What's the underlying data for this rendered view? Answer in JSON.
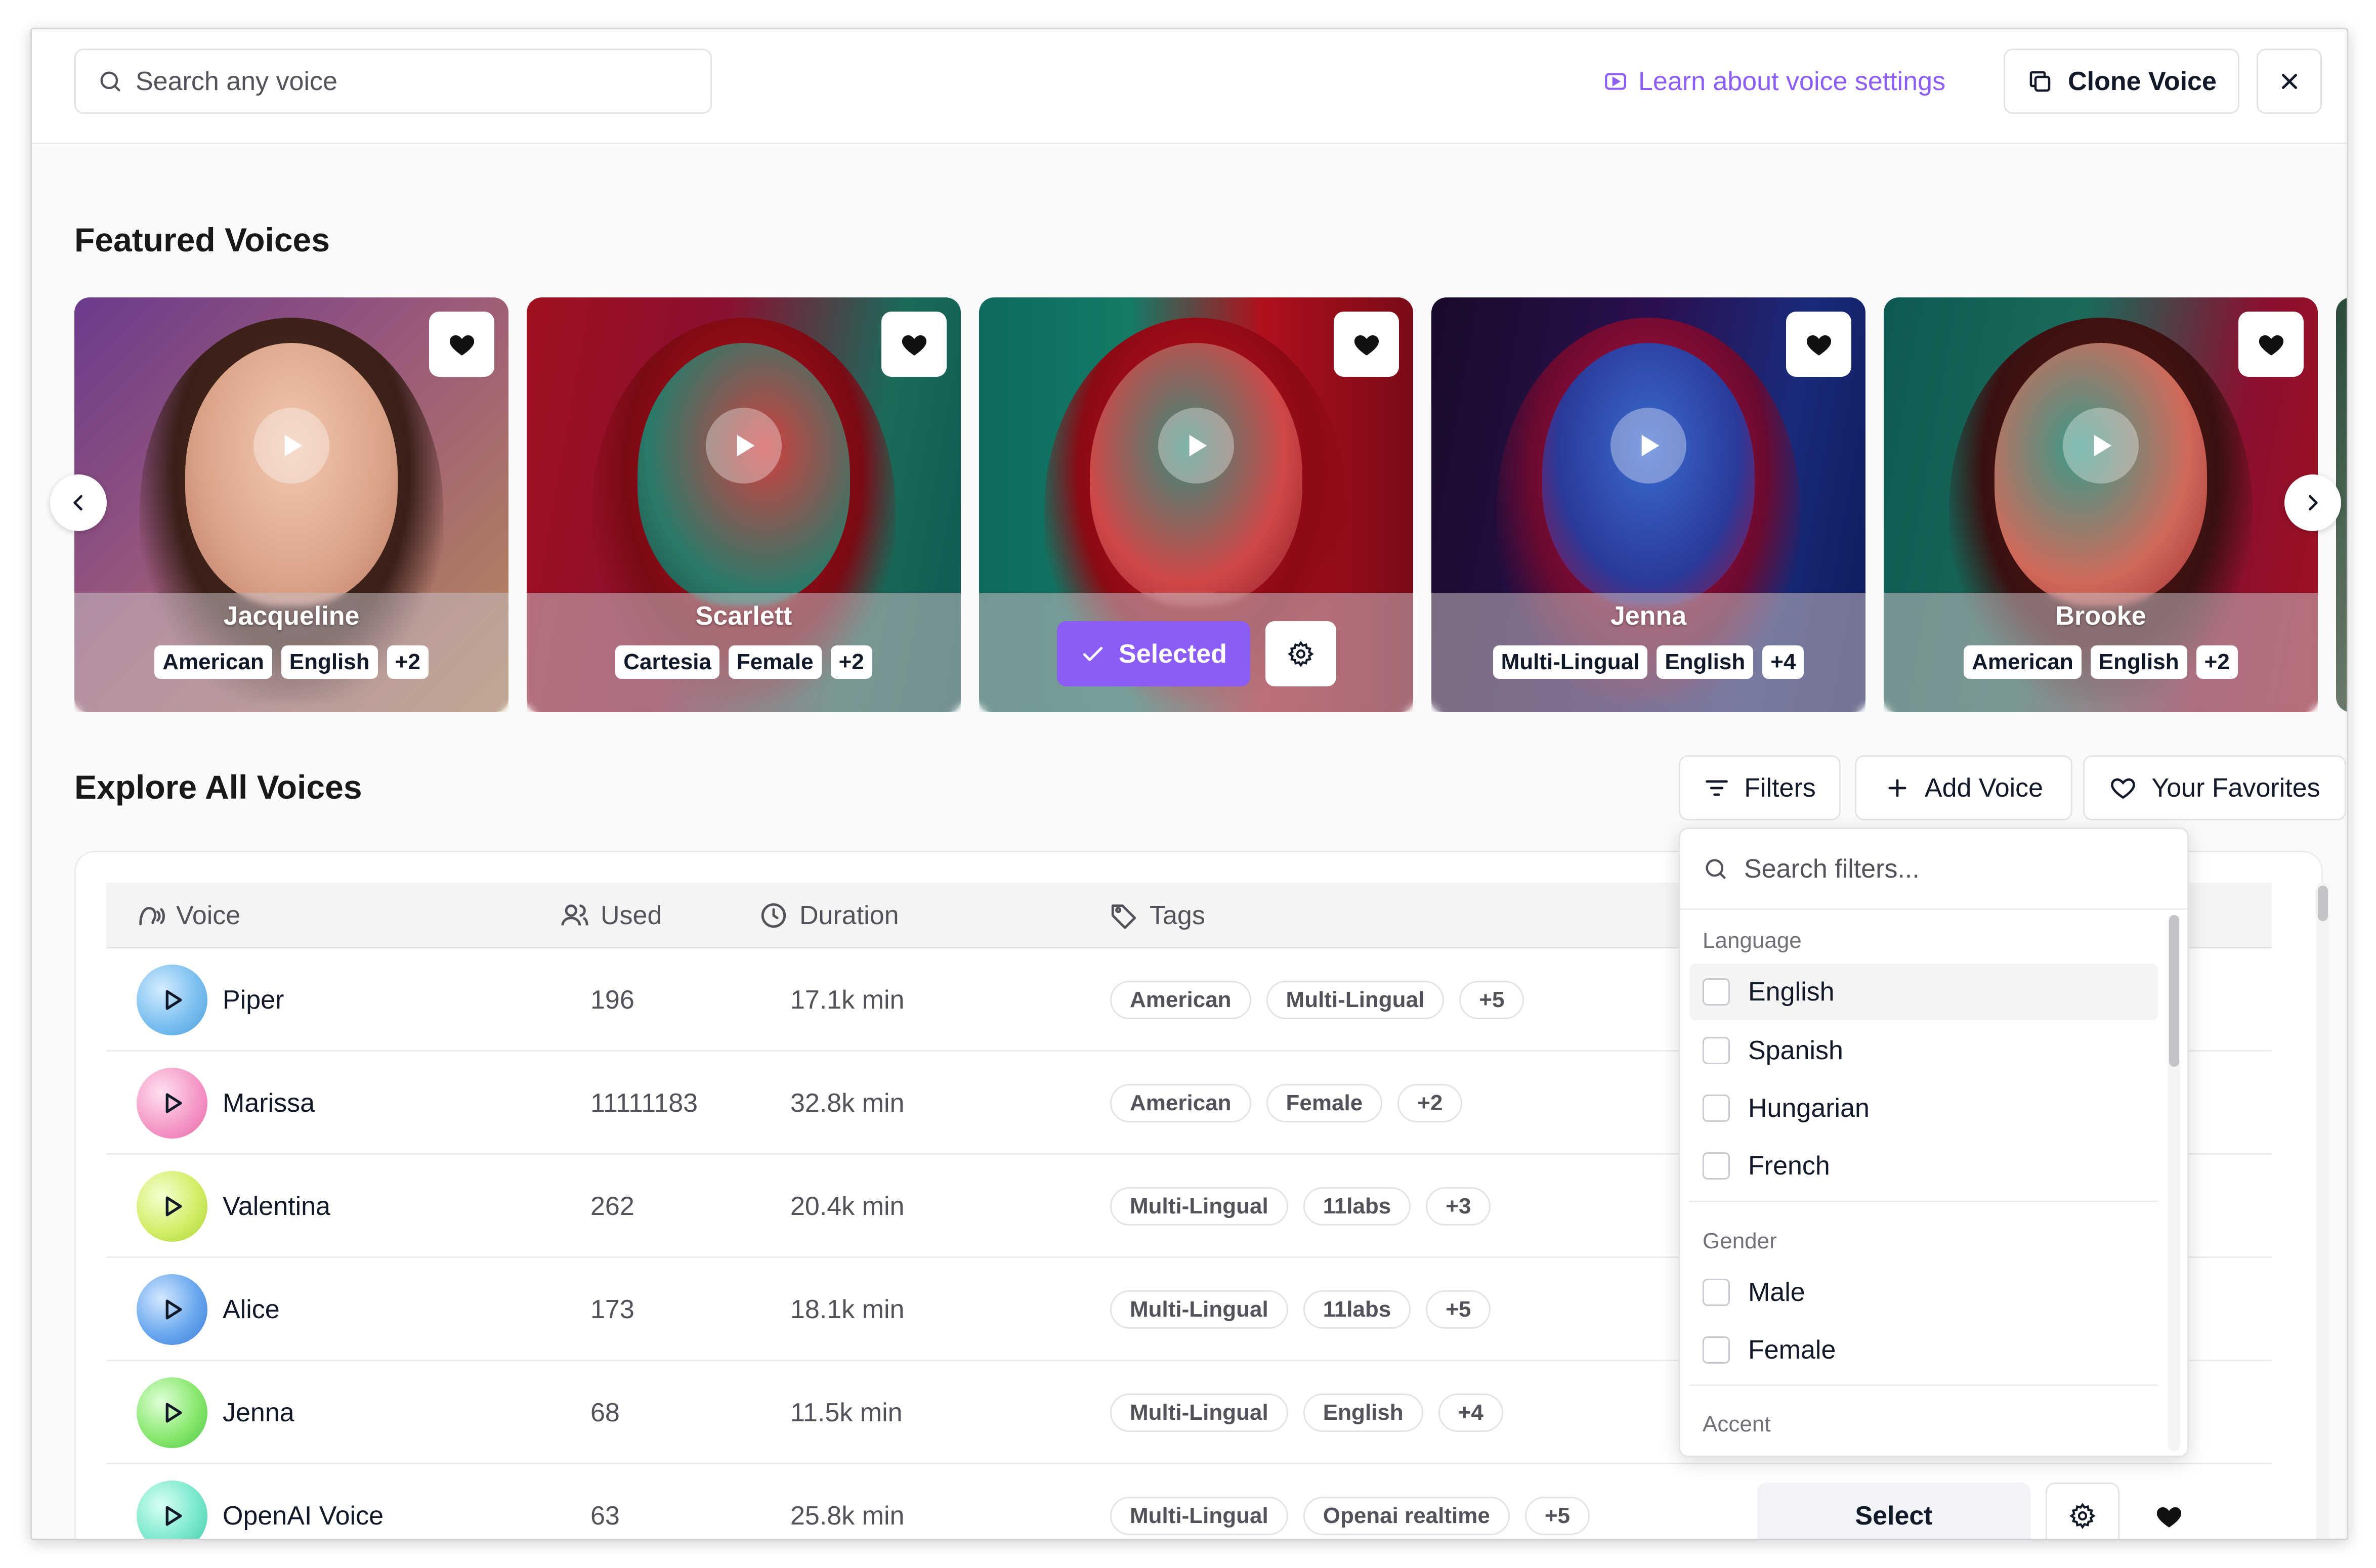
{
  "header": {
    "search_placeholder": "Search any voice",
    "learn_link": "Learn about voice settings",
    "clone_button": "Clone Voice"
  },
  "featured": {
    "title": "Featured Voices",
    "cards": [
      {
        "name": "Jacqueline",
        "tags": [
          "American",
          "English",
          "+2"
        ]
      },
      {
        "name": "Scarlett",
        "tags": [
          "Cartesia",
          "Female",
          "+2"
        ]
      },
      {
        "name": "",
        "tags": [],
        "selected_label": "Selected"
      },
      {
        "name": "Jenna",
        "tags": [
          "Multi-Lingual",
          "English",
          "+4"
        ]
      },
      {
        "name": "Brooke",
        "tags": [
          "American",
          "English",
          "+2"
        ]
      }
    ]
  },
  "explore": {
    "title": "Explore All Voices",
    "filters_button": "Filters",
    "add_voice_button": "Add Voice",
    "favorites_button": "Your Favorites",
    "columns": {
      "voice": "Voice",
      "used": "Used",
      "duration": "Duration",
      "tags": "Tags"
    },
    "rows": [
      {
        "name": "Piper",
        "used": "196",
        "duration": "17.1k min",
        "tags": [
          "American",
          "Multi-Lingual",
          "+5"
        ]
      },
      {
        "name": "Marissa",
        "used": "11111183",
        "duration": "32.8k min",
        "tags": [
          "American",
          "Female",
          "+2"
        ]
      },
      {
        "name": "Valentina",
        "used": "262",
        "duration": "20.4k min",
        "tags": [
          "Multi-Lingual",
          "11labs",
          "+3"
        ]
      },
      {
        "name": "Alice",
        "used": "173",
        "duration": "18.1k min",
        "tags": [
          "Multi-Lingual",
          "11labs",
          "+5"
        ]
      },
      {
        "name": "Jenna",
        "used": "68",
        "duration": "11.5k min",
        "tags": [
          "Multi-Lingual",
          "English",
          "+4"
        ]
      },
      {
        "name": "OpenAI Voice",
        "used": "63",
        "duration": "25.8k min",
        "tags": [
          "Multi-Lingual",
          "Openai realtime",
          "+5"
        ],
        "select_label": "Select"
      }
    ]
  },
  "filters": {
    "search_placeholder": "Search filters...",
    "language_label": "Language",
    "languages": [
      "English",
      "Spanish",
      "Hungarian",
      "French"
    ],
    "gender_label": "Gender",
    "genders": [
      "Male",
      "Female"
    ],
    "accent_label": "Accent"
  },
  "colors": {
    "accent": "#8b5cf6"
  }
}
